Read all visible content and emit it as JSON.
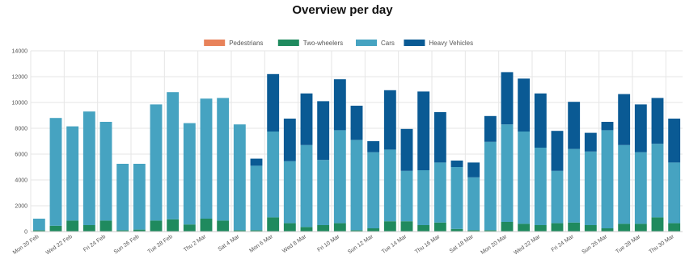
{
  "chart_data": {
    "type": "bar",
    "stacked": true,
    "title": "Overview per day",
    "categories": [
      "Mon 20 Feb",
      "Tue 21 Feb",
      "Wed 22 Feb",
      "Thu 23 Feb",
      "Fri 24 Feb",
      "Sat 25 Feb",
      "Sun 26 Feb",
      "Mon 27 Feb",
      "Tue 28 Feb",
      "Wed 1 Mar",
      "Thu 2 Mar",
      "Fri 3 Mar",
      "Sat 4 Mar",
      "Sun 5 Mar",
      "Mon 6 Mar",
      "Tue 7 Mar",
      "Wed 8 Mar",
      "Thu 9 Mar",
      "Fri 10 Mar",
      "Sat 11 Mar",
      "Sun 12 Mar",
      "Mon 13 Mar",
      "Tue 14 Mar",
      "Wed 15 Mar",
      "Thu 16 Mar",
      "Fri 17 Mar",
      "Sat 18 Mar",
      "Sun 19 Mar",
      "Mon 20 Mar",
      "Tue 21 Mar",
      "Wed 22 Mar",
      "Thu 23 Mar",
      "Fri 24 Mar",
      "Sat 25 Mar",
      "Sun 26 Mar",
      "Mon 27 Mar",
      "Tue 28 Mar",
      "Wed 29 Mar",
      "Thu 30 Mar"
    ],
    "shown_tick_labels": [
      "Mon 20 Feb",
      "Wed 22 Feb",
      "Fri 24 Feb",
      "Sun 26 Feb",
      "Tue 28 Feb",
      "Thu 2 Mar",
      "Sat 4 Mar",
      "Mon 6 Mar",
      "Wed 8 Mar",
      "Fri 10 Mar",
      "Sun 12 Mar",
      "Tue 14 Mar",
      "Thu 16 Mar",
      "Sat 18 Mar",
      "Mon 20 Mar",
      "Wed 22 Mar",
      "Fri 24 Mar",
      "Sun 26 Mar",
      "Tue 28 Mar",
      "Thu 30 Mar"
    ],
    "ylim": [
      0,
      14000
    ],
    "yticks": [
      0,
      2000,
      4000,
      6000,
      8000,
      10000,
      12000,
      14000
    ],
    "grid": true,
    "legend_position": "top-center",
    "series": [
      {
        "name": "Pedestrians",
        "color": "#e8825a",
        "values": [
          0,
          0,
          0,
          0,
          0,
          0,
          0,
          0,
          0,
          0,
          0,
          0,
          0,
          0,
          0,
          0,
          0,
          0,
          0,
          0,
          0,
          0,
          0,
          0,
          0,
          0,
          0,
          0,
          0,
          0,
          0,
          0,
          0,
          0,
          0,
          0,
          0,
          0,
          0
        ]
      },
      {
        "name": "Two-wheelers",
        "color": "#1f8a5e",
        "values": [
          100,
          450,
          850,
          500,
          850,
          100,
          150,
          850,
          950,
          550,
          1000,
          850,
          100,
          100,
          1100,
          650,
          350,
          500,
          650,
          100,
          250,
          800,
          800,
          500,
          700,
          200,
          100,
          100,
          750,
          600,
          500,
          650,
          700,
          500,
          250,
          600,
          600,
          1100,
          650
        ]
      },
      {
        "name": "Cars",
        "color": "#46a3c1",
        "values": [
          900,
          8350,
          7300,
          8800,
          7650,
          5150,
          5100,
          9000,
          9850,
          7850,
          9300,
          9500,
          8200,
          5000,
          6650,
          4800,
          6350,
          5050,
          7200,
          7000,
          5900,
          5550,
          3900,
          4250,
          4650,
          4800,
          4100,
          6850,
          7550,
          7150,
          6000,
          4050,
          5700,
          5700,
          7600,
          6100,
          5550,
          5700,
          4700
        ]
      },
      {
        "name": "Heavy Vehicles",
        "color": "#0a5a94",
        "values": [
          0,
          0,
          0,
          0,
          0,
          0,
          0,
          0,
          0,
          0,
          0,
          0,
          0,
          550,
          4450,
          3300,
          4000,
          4550,
          3950,
          2650,
          850,
          4600,
          3250,
          6100,
          3900,
          500,
          1150,
          2000,
          4050,
          4100,
          4200,
          3100,
          3650,
          1450,
          650,
          3950,
          3700,
          3550,
          3400
        ]
      }
    ]
  }
}
